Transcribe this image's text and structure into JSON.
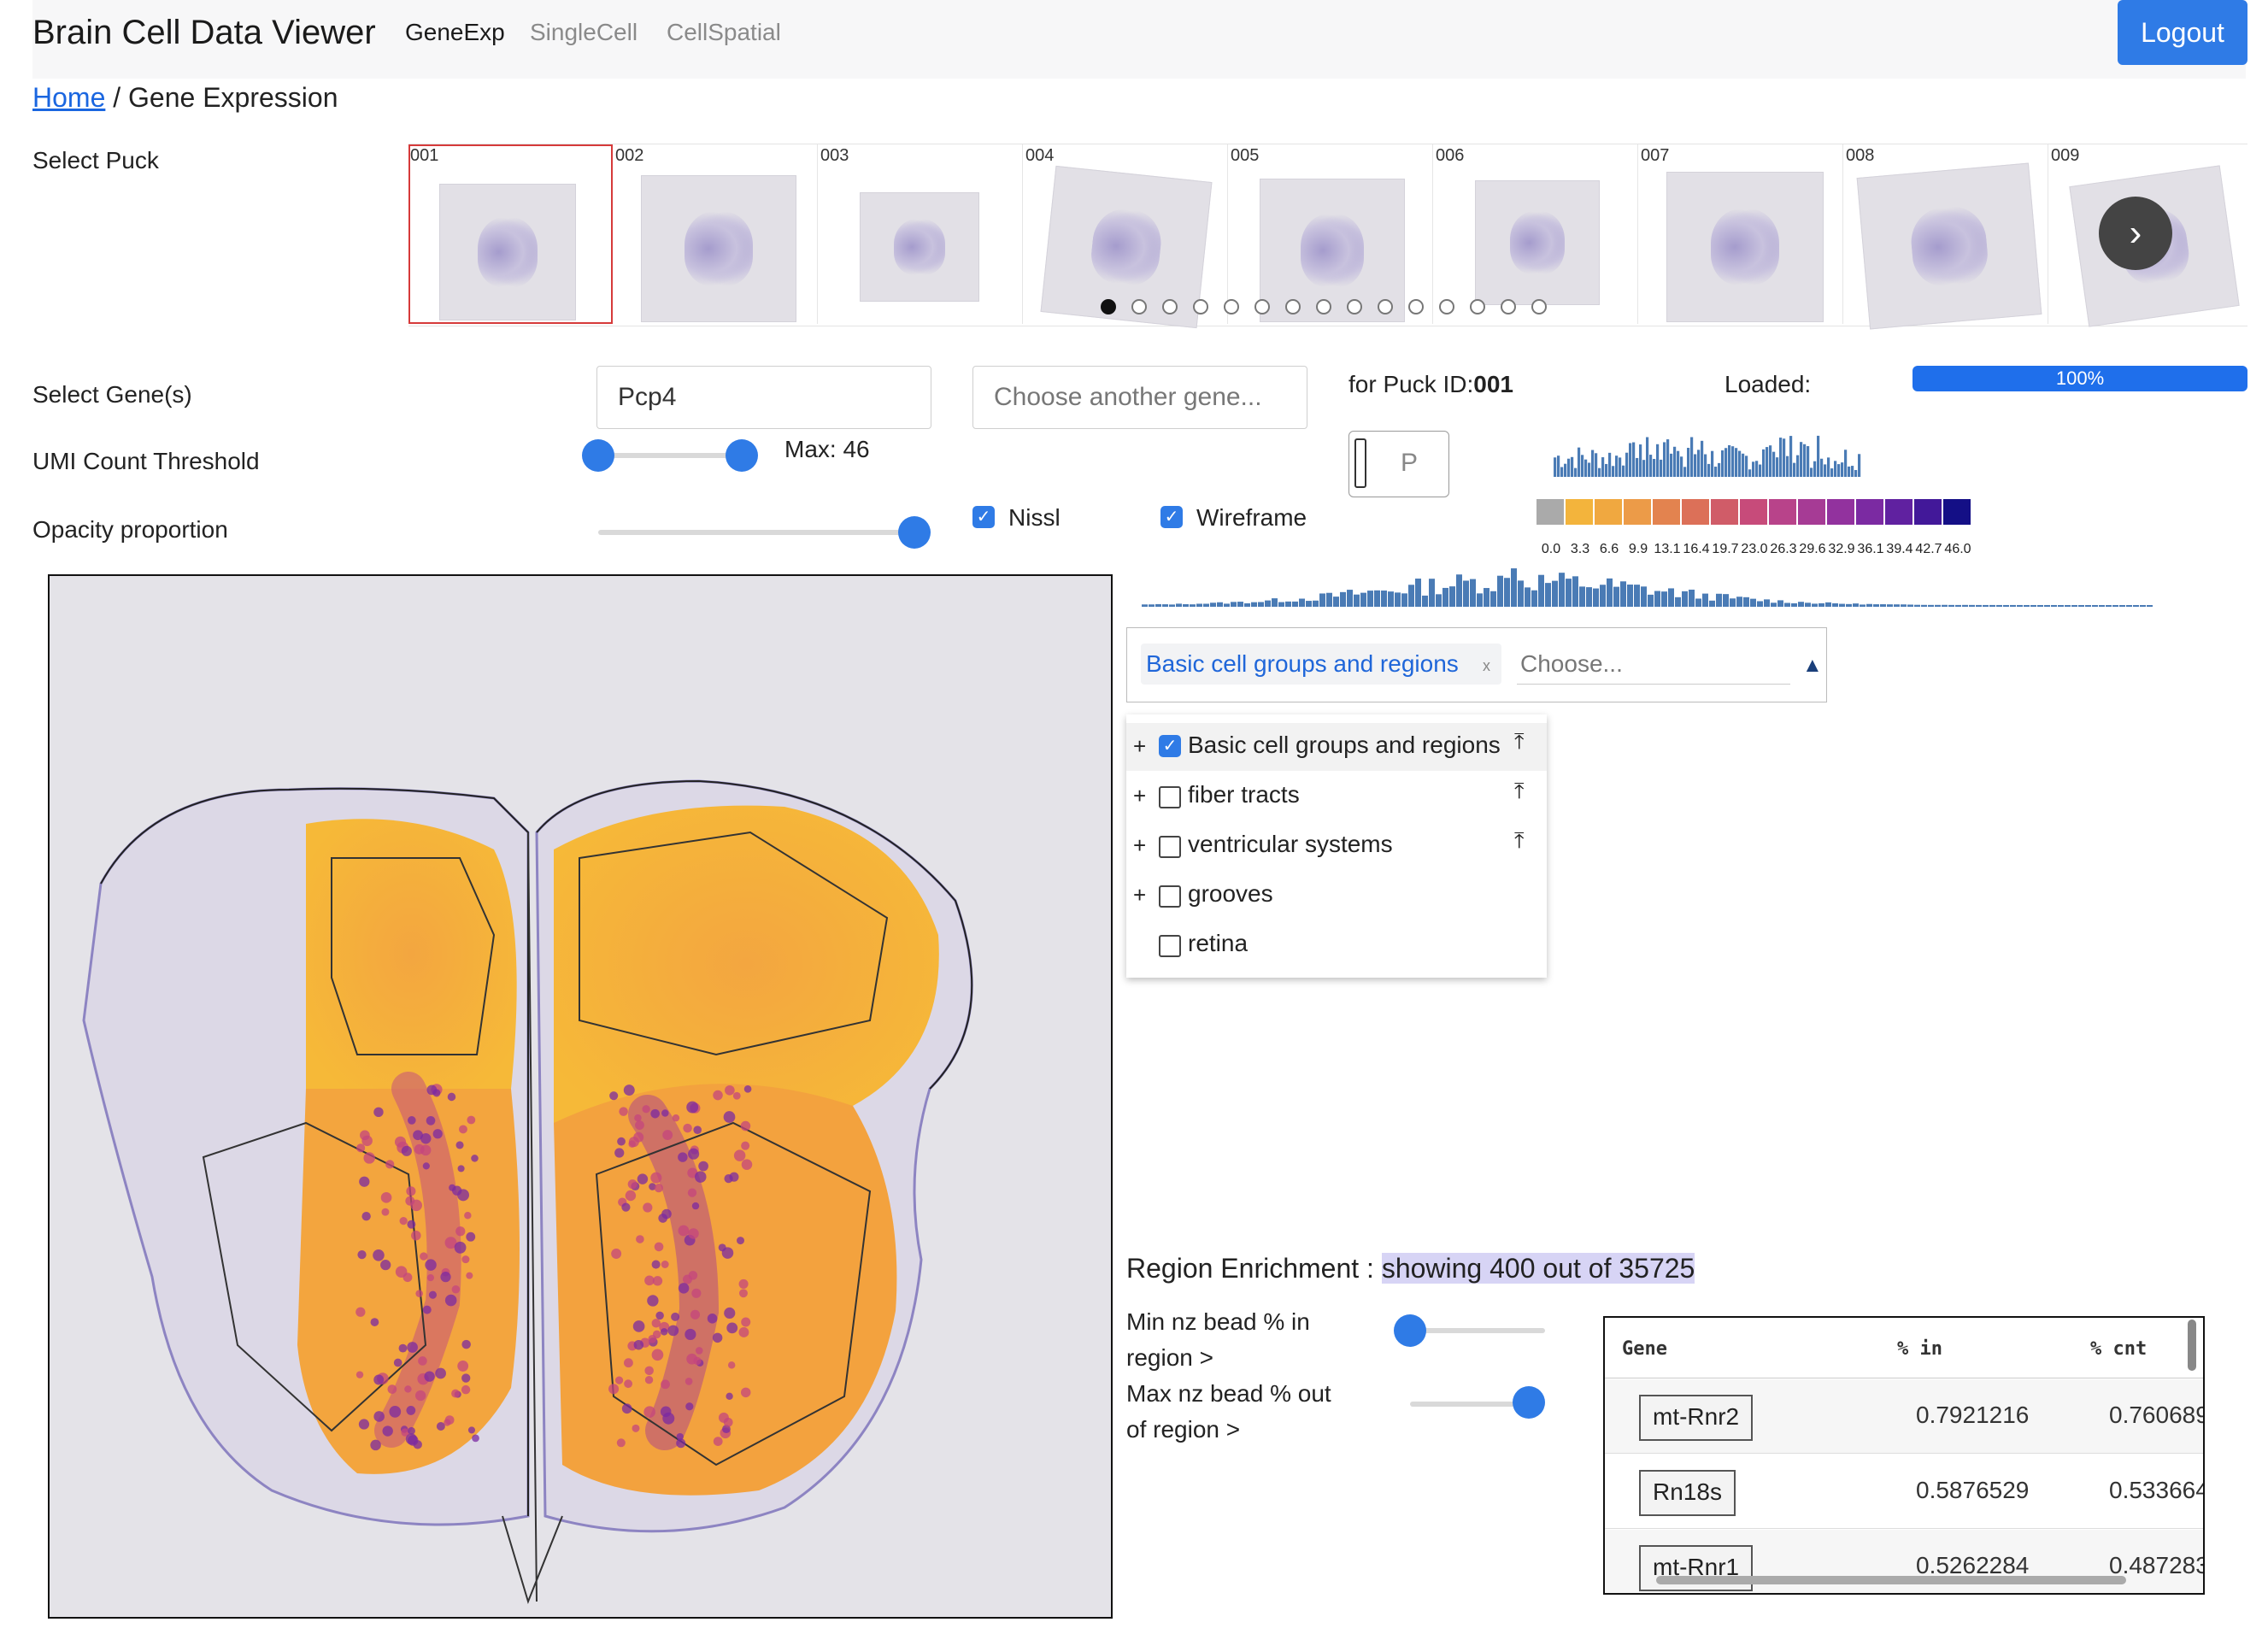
{
  "app": {
    "title": "Brain Cell Data Viewer"
  },
  "nav": {
    "items": [
      {
        "label": "GeneExp",
        "active": true
      },
      {
        "label": "SingleCell",
        "active": false
      },
      {
        "label": "CellSpatial",
        "active": false
      }
    ],
    "logout_label": "Logout"
  },
  "breadcrumb": {
    "home": "Home",
    "separator": "/",
    "current": "Gene Expression"
  },
  "puck_select": {
    "label": "Select Puck",
    "pucks": [
      "001",
      "002",
      "003",
      "004",
      "005",
      "006",
      "007",
      "008",
      "009"
    ],
    "selected": "001",
    "dot_count": 15,
    "active_dot": 0
  },
  "gene_select": {
    "label": "Select Gene(s)",
    "value": "Pcp4",
    "another_placeholder": "Choose another gene..."
  },
  "puck_info": {
    "label": "for Puck ID:",
    "id": "001"
  },
  "loaded": {
    "label": "Loaded:",
    "percent_text": "100%",
    "fraction": 1.0
  },
  "umi": {
    "label": "UMI Count Threshold",
    "max_text": "Max: 46",
    "range_min_fraction": 0.0,
    "range_max_fraction": 1.0
  },
  "opacity": {
    "label": "Opacity proportion",
    "fraction": 1.0
  },
  "toggles": {
    "nissl": "Nissl",
    "wireframe": "Wireframe"
  },
  "p_input": {
    "placeholder": "P"
  },
  "legend": {
    "colors": [
      "#aaaaaa",
      "#f3b43c",
      "#f0a840",
      "#ec9b48",
      "#e3834f",
      "#dc7058",
      "#d05c68",
      "#c74b7a",
      "#b8438a",
      "#a63b95",
      "#92329e",
      "#7b2aa2",
      "#6021a0",
      "#421899",
      "#140f86"
    ],
    "ticks": [
      "0.0",
      "3.3",
      "6.6",
      "9.9",
      "13.1",
      "16.4",
      "19.7",
      "23.0",
      "26.3",
      "29.6",
      "32.9",
      "36.1",
      "39.4",
      "42.7",
      "46.0"
    ]
  },
  "region_select": {
    "tag": "Basic cell groups and regions",
    "tag_remove": "x",
    "placeholder": "Choose...",
    "arrow": "▲"
  },
  "region_tree": [
    {
      "label": "Basic cell groups and regions",
      "checked": true,
      "expandable": true,
      "up": true
    },
    {
      "label": "fiber tracts",
      "checked": false,
      "expandable": true,
      "up": true
    },
    {
      "label": "ventricular systems",
      "checked": false,
      "expandable": true,
      "up": true
    },
    {
      "label": "grooves",
      "checked": false,
      "expandable": true,
      "up": false
    },
    {
      "label": "retina",
      "checked": false,
      "expandable": false,
      "up": false
    }
  ],
  "enrichment": {
    "title": "Region Enrichment : ",
    "showing": "showing 400 out of 35725",
    "min_label_1": "Min nz bead % in",
    "min_label_2": "region >",
    "max_label_1": "Max nz bead % out",
    "max_label_2": "of region >",
    "min_fraction": 0.0,
    "max_fraction": 1.0,
    "columns": [
      "Gene",
      "% in",
      "% cnt"
    ],
    "rows": [
      {
        "gene": "mt-Rnr2",
        "pct_in": "0.7921216",
        "pct_cnt": "0.760689"
      },
      {
        "gene": "Rn18s",
        "pct_in": "0.5876529",
        "pct_cnt": "0.533664"
      },
      {
        "gene": "mt-Rnr1",
        "pct_in": "0.5262284",
        "pct_cnt": "0.487283"
      }
    ]
  }
}
